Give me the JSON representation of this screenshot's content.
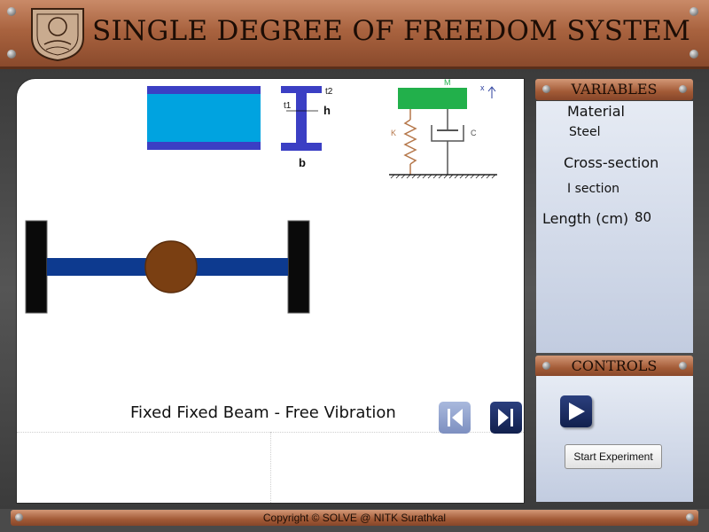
{
  "header": {
    "title": "SINGLE DEGREE OF FREEDOM SYSTEM",
    "logo_icon": "institute-emblem-icon"
  },
  "diagram": {
    "i_section_labels": {
      "t2": "t2",
      "t1": "t1",
      "h": "h",
      "b": "b"
    },
    "sdof_labels": {
      "mass": "M",
      "spring": "K",
      "damper": "C",
      "displacement": "x"
    }
  },
  "simulation": {
    "caption": "Fixed Fixed Beam - Free Vibration"
  },
  "variables": {
    "title": "VARIABLES",
    "material_label": "Material",
    "material_value": "Steel",
    "cross_section_label": "Cross-section",
    "cross_section_value": "I section",
    "length_label": "Length (cm)",
    "length_value": "80"
  },
  "controls": {
    "title": "CONTROLS",
    "start_label": "Start Experiment"
  },
  "footer": {
    "copyright": "Copyright © SOLVE @ NITK Surathkal"
  },
  "colors": {
    "beam": "#0d3a8f",
    "mass_ball": "#7a3f12",
    "section_blue": "#00a3e0",
    "section_flange": "#3b3fc4",
    "sdof_mass": "#22b04b",
    "spring": "#b5774a"
  }
}
